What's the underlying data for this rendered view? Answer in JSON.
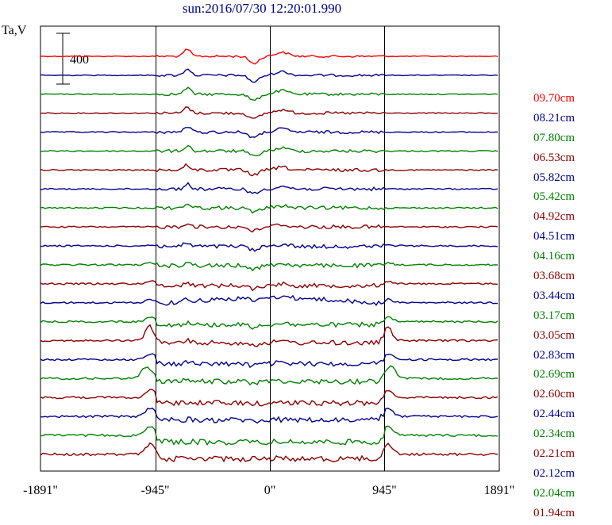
{
  "chart_data": {
    "type": "line",
    "title": "sun:2016/07/30 12:20:01.990",
    "ylabel": "Ta,V",
    "scale_bar_label": "400",
    "x_ticks": [
      "-1891\"",
      "-945\"",
      "0\"",
      "945\"",
      "1891\""
    ],
    "xlim": [
      -1891,
      1891
    ],
    "markers": [
      -945,
      0,
      945
    ],
    "colors": {
      "red": "#ff0000",
      "navy": "#00008b",
      "green": "#008000",
      "maroon": "#8b0000"
    },
    "series": [
      {
        "name": "09.70cm",
        "color": "#ff0000"
      },
      {
        "name": "08.21cm",
        "color": "#00008b"
      },
      {
        "name": "07.80cm",
        "color": "#008000"
      },
      {
        "name": "06.53cm",
        "color": "#8b0000"
      },
      {
        "name": "05.82cm",
        "color": "#00008b"
      },
      {
        "name": "05.42cm",
        "color": "#008000"
      },
      {
        "name": "04.92cm",
        "color": "#8b0000"
      },
      {
        "name": "04.51cm",
        "color": "#00008b"
      },
      {
        "name": "04.16cm",
        "color": "#008000"
      },
      {
        "name": "03.68cm",
        "color": "#8b0000"
      },
      {
        "name": "03.44cm",
        "color": "#00008b"
      },
      {
        "name": "03.17cm",
        "color": "#008000"
      },
      {
        "name": "03.05cm",
        "color": "#8b0000"
      },
      {
        "name": "02.83cm",
        "color": "#00008b"
      },
      {
        "name": "02.69cm",
        "color": "#008000"
      },
      {
        "name": "02.60cm",
        "color": "#8b0000"
      },
      {
        "name": "02.44cm",
        "color": "#00008b"
      },
      {
        "name": "02.34cm",
        "color": "#008000"
      },
      {
        "name": "02.21cm",
        "color": "#8b0000"
      },
      {
        "name": "02.12cm",
        "color": "#00008b"
      },
      {
        "name": "02.04cm",
        "color": "#008000"
      },
      {
        "name": "01.94cm",
        "color": "#8b0000"
      }
    ]
  }
}
